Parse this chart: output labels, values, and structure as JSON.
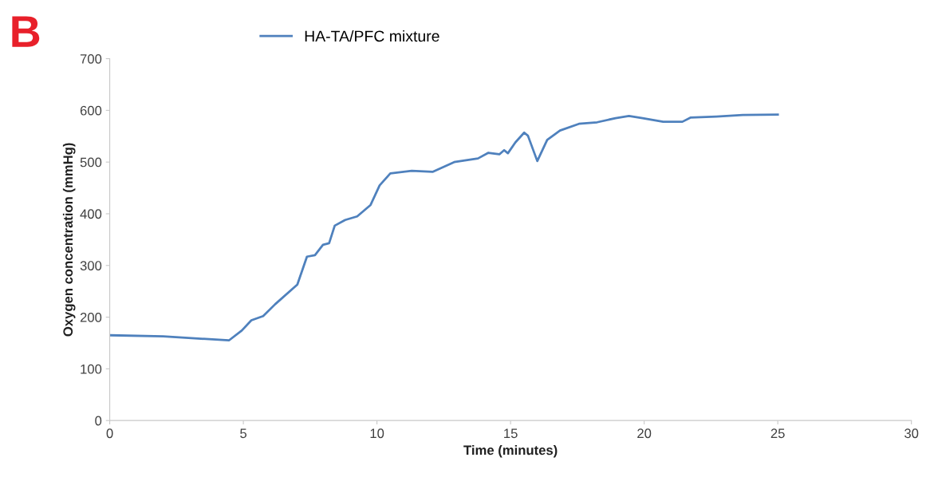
{
  "chart_data": {
    "type": "line",
    "xlabel": "Time (minutes)",
    "ylabel": "Oxygen concentration (mmHg)",
    "annotations": [
      "B"
    ],
    "xlim": [
      0,
      30
    ],
    "xticks": [
      0,
      5,
      10,
      15,
      20,
      25,
      30
    ],
    "ylim": [
      0,
      700
    ],
    "yticks": [
      0,
      100,
      200,
      300,
      400,
      500,
      600,
      700
    ],
    "grid": false,
    "legend": "top",
    "marker": "none",
    "line_style": "solid",
    "series": [
      {
        "name": "HA-TA/PFC mixture",
        "color": "#4f81bd",
        "x": [
          0,
          2.0,
          4.46,
          4.94,
          5.3,
          5.74,
          6.19,
          7.02,
          7.38,
          7.68,
          7.98,
          8.21,
          8.42,
          8.81,
          9.26,
          9.76,
          10.1,
          10.5,
          11.3,
          12.08,
          12.89,
          13.78,
          14.17,
          14.58,
          14.76,
          14.9,
          15.18,
          15.51,
          15.65,
          16.0,
          16.37,
          16.85,
          17.56,
          18.24,
          18.93,
          19.43,
          19.94,
          20.71,
          21.43,
          21.73,
          22.71,
          23.69,
          25.0
        ],
        "values": [
          165,
          163,
          155,
          174,
          194,
          202,
          225,
          263,
          317,
          320,
          340,
          343,
          377,
          388,
          395,
          417,
          455,
          478,
          483,
          481,
          500,
          507,
          518,
          515,
          523,
          517,
          538,
          557,
          551,
          502,
          543,
          561,
          574,
          577,
          585,
          589,
          585,
          578,
          578,
          586,
          588,
          591,
          592
        ]
      }
    ]
  }
}
